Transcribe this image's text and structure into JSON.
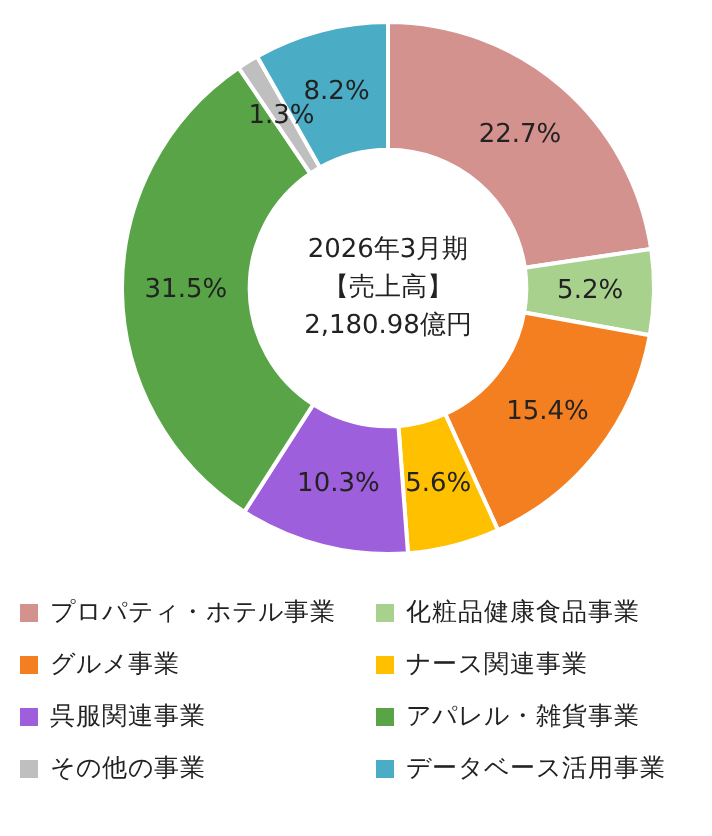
{
  "chart_data": {
    "type": "donut",
    "categories": [
      "プロパティ・ホテル事業",
      "化粧品健康食品事業",
      "グルメ事業",
      "ナース関連事業",
      "呉服関連事業",
      "アパレル・雑貨事業",
      "その他の事業",
      "データベース活用事業"
    ],
    "values": [
      22.7,
      5.2,
      15.4,
      5.6,
      10.3,
      31.5,
      1.3,
      8.2
    ],
    "colors": [
      "#d4928f",
      "#a9d18e",
      "#f47f20",
      "#ffc000",
      "#9e5fdc",
      "#58a447",
      "#bfbfbf",
      "#4bacc6"
    ],
    "value_labels": [
      "22.7%",
      "5.2%",
      "15.4%",
      "5.6%",
      "10.3%",
      "31.5%",
      "1.3%",
      "8.2%"
    ],
    "legend": "bottom",
    "annotations": [
      "2026年3月期",
      "【売上高】",
      "2,180.98億円"
    ]
  }
}
